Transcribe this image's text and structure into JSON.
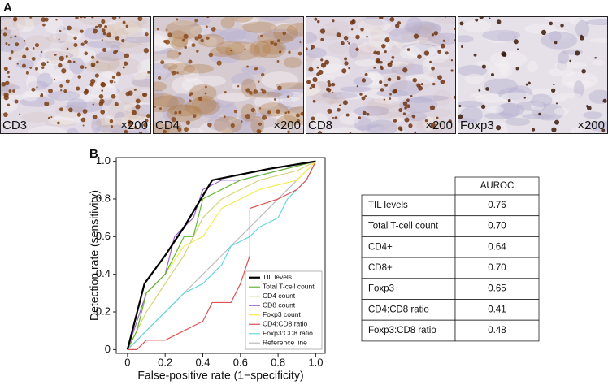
{
  "panel_a": {
    "label": "A",
    "images": [
      {
        "stain": "CD3",
        "magnification": "×200"
      },
      {
        "stain": "CD4",
        "magnification": "×200"
      },
      {
        "stain": "CD8",
        "magnification": "×200"
      },
      {
        "stain": "Foxp3",
        "magnification": "×200"
      }
    ]
  },
  "panel_b": {
    "label": "B"
  },
  "chart_data": {
    "type": "line",
    "x_label": "False-positive rate (1−specificity)",
    "y_label": "Detection rate (sensitivity)",
    "xlim": [
      -0.06,
      1.05
    ],
    "ylim": [
      -0.02,
      1.02
    ],
    "xticks": [
      0,
      0.2,
      0.4,
      0.6,
      0.8,
      {
        "value": 1,
        "label": "1.0"
      }
    ],
    "yticks": [
      0,
      0.2,
      0.4,
      0.6,
      0.8,
      {
        "value": 1,
        "label": "1.0"
      }
    ],
    "legend": "lower right",
    "series": [
      {
        "name": "TIL levels",
        "color": "#000000",
        "x": [
          0,
          0.09,
          0.2,
          0.3,
          0.45,
          0.55,
          0.75,
          1
        ],
        "values": [
          0,
          0.35,
          0.5,
          0.65,
          0.9,
          0.92,
          0.96,
          1
        ]
      },
      {
        "name": "Total T-cell count",
        "color": "#66b833",
        "x": [
          0,
          0.05,
          0.1,
          0.2,
          0.25,
          0.3,
          0.35,
          0.4,
          0.5,
          0.6,
          0.8,
          1
        ],
        "values": [
          0,
          0.1,
          0.3,
          0.4,
          0.5,
          0.6,
          0.6,
          0.8,
          0.85,
          0.9,
          0.95,
          1
        ]
      },
      {
        "name": "CD4 count",
        "color": "#d4d47a",
        "x": [
          0,
          0.05,
          0.1,
          0.2,
          0.3,
          0.4,
          0.5,
          0.6,
          0.7,
          0.9,
          1
        ],
        "values": [
          0,
          0.1,
          0.2,
          0.35,
          0.5,
          0.7,
          0.8,
          0.85,
          0.9,
          0.95,
          1
        ]
      },
      {
        "name": "CD8 count",
        "color": "#9966cc",
        "x": [
          0,
          0.05,
          0.1,
          0.2,
          0.25,
          0.35,
          0.4,
          0.5,
          0.6,
          0.8,
          1
        ],
        "values": [
          0,
          0.15,
          0.3,
          0.4,
          0.6,
          0.7,
          0.85,
          0.9,
          0.9,
          0.95,
          1
        ]
      },
      {
        "name": "Foxp3 count",
        "color": "#f5ec4a",
        "x": [
          0,
          0.05,
          0.1,
          0.2,
          0.3,
          0.4,
          0.5,
          0.6,
          0.7,
          0.9,
          0.95,
          1
        ],
        "values": [
          0,
          0.1,
          0.3,
          0.4,
          0.55,
          0.6,
          0.75,
          0.8,
          0.85,
          0.9,
          0.95,
          1
        ]
      },
      {
        "name": "CD4:CD8 ratio",
        "color": "#e05050",
        "x": [
          0,
          0.05,
          0.1,
          0.2,
          0.3,
          0.4,
          0.45,
          0.55,
          0.6,
          0.65,
          0.65,
          0.8,
          0.9,
          0.95,
          1
        ],
        "values": [
          0,
          0,
          0.05,
          0.05,
          0.1,
          0.15,
          0.25,
          0.25,
          0.35,
          0.5,
          0.75,
          0.8,
          0.85,
          0.9,
          1
        ]
      },
      {
        "name": "Foxp3:CD8 ratio",
        "color": "#66d8dd",
        "x": [
          0,
          0.05,
          0.1,
          0.2,
          0.3,
          0.4,
          0.5,
          0.55,
          0.65,
          0.7,
          0.8,
          0.85,
          0.9,
          0.95,
          1
        ],
        "values": [
          0,
          0.05,
          0.1,
          0.2,
          0.3,
          0.35,
          0.45,
          0.55,
          0.6,
          0.65,
          0.7,
          0.8,
          0.85,
          0.9,
          1
        ]
      },
      {
        "name": "Reference line",
        "color": "#bbbbbb",
        "x": [
          0,
          1
        ],
        "values": [
          0,
          1
        ]
      }
    ]
  },
  "table": {
    "columns": [
      "AUROC"
    ],
    "rows": [
      [
        "TIL levels",
        "0.76"
      ],
      [
        "Total T-cell count",
        "0.70"
      ],
      [
        "CD4+",
        "0.64"
      ],
      [
        "CD8+",
        "0.70"
      ],
      [
        "Foxp3+",
        "0.65"
      ],
      [
        "CD4:CD8 ratio",
        "0.41"
      ],
      [
        "Foxp3:CD8 ratio",
        "0.48"
      ]
    ]
  }
}
